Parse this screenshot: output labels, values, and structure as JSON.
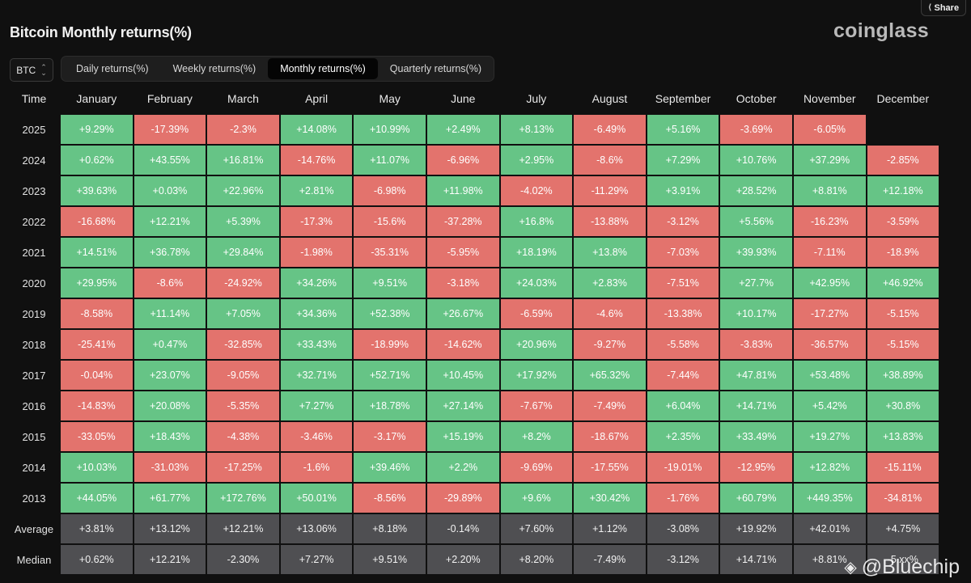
{
  "header": {
    "share_label": "Share",
    "title": "Bitcoin Monthly returns(%)",
    "brand": "coinglass"
  },
  "controls": {
    "coin": "BTC",
    "tabs": [
      "Daily returns(%)",
      "Weekly returns(%)",
      "Monthly returns(%)",
      "Quarterly returns(%)"
    ],
    "active_tab": 2
  },
  "table": {
    "columns": [
      "Time",
      "January",
      "February",
      "March",
      "April",
      "May",
      "June",
      "July",
      "August",
      "September",
      "October",
      "November",
      "December"
    ],
    "rows": [
      {
        "label": "2025",
        "values": [
          "+9.29%",
          "-17.39%",
          "-2.3%",
          "+14.08%",
          "+10.99%",
          "+2.49%",
          "+8.13%",
          "-6.49%",
          "+5.16%",
          "-3.69%",
          "-6.05%",
          ""
        ]
      },
      {
        "label": "2024",
        "values": [
          "+0.62%",
          "+43.55%",
          "+16.81%",
          "-14.76%",
          "+11.07%",
          "-6.96%",
          "+2.95%",
          "-8.6%",
          "+7.29%",
          "+10.76%",
          "+37.29%",
          "-2.85%"
        ]
      },
      {
        "label": "2023",
        "values": [
          "+39.63%",
          "+0.03%",
          "+22.96%",
          "+2.81%",
          "-6.98%",
          "+11.98%",
          "-4.02%",
          "-11.29%",
          "+3.91%",
          "+28.52%",
          "+8.81%",
          "+12.18%"
        ]
      },
      {
        "label": "2022",
        "values": [
          "-16.68%",
          "+12.21%",
          "+5.39%",
          "-17.3%",
          "-15.6%",
          "-37.28%",
          "+16.8%",
          "-13.88%",
          "-3.12%",
          "+5.56%",
          "-16.23%",
          "-3.59%"
        ]
      },
      {
        "label": "2021",
        "values": [
          "+14.51%",
          "+36.78%",
          "+29.84%",
          "-1.98%",
          "-35.31%",
          "-5.95%",
          "+18.19%",
          "+13.8%",
          "-7.03%",
          "+39.93%",
          "-7.11%",
          "-18.9%"
        ]
      },
      {
        "label": "2020",
        "values": [
          "+29.95%",
          "-8.6%",
          "-24.92%",
          "+34.26%",
          "+9.51%",
          "-3.18%",
          "+24.03%",
          "+2.83%",
          "-7.51%",
          "+27.7%",
          "+42.95%",
          "+46.92%"
        ]
      },
      {
        "label": "2019",
        "values": [
          "-8.58%",
          "+11.14%",
          "+7.05%",
          "+34.36%",
          "+52.38%",
          "+26.67%",
          "-6.59%",
          "-4.6%",
          "-13.38%",
          "+10.17%",
          "-17.27%",
          "-5.15%"
        ]
      },
      {
        "label": "2018",
        "values": [
          "-25.41%",
          "+0.47%",
          "-32.85%",
          "+33.43%",
          "-18.99%",
          "-14.62%",
          "+20.96%",
          "-9.27%",
          "-5.58%",
          "-3.83%",
          "-36.57%",
          "-5.15%"
        ]
      },
      {
        "label": "2017",
        "values": [
          "-0.04%",
          "+23.07%",
          "-9.05%",
          "+32.71%",
          "+52.71%",
          "+10.45%",
          "+17.92%",
          "+65.32%",
          "-7.44%",
          "+47.81%",
          "+53.48%",
          "+38.89%"
        ]
      },
      {
        "label": "2016",
        "values": [
          "-14.83%",
          "+20.08%",
          "-5.35%",
          "+7.27%",
          "+18.78%",
          "+27.14%",
          "-7.67%",
          "-7.49%",
          "+6.04%",
          "+14.71%",
          "+5.42%",
          "+30.8%"
        ]
      },
      {
        "label": "2015",
        "values": [
          "-33.05%",
          "+18.43%",
          "-4.38%",
          "-3.46%",
          "-3.17%",
          "+15.19%",
          "+8.2%",
          "-18.67%",
          "+2.35%",
          "+33.49%",
          "+19.27%",
          "+13.83%"
        ]
      },
      {
        "label": "2014",
        "values": [
          "+10.03%",
          "-31.03%",
          "-17.25%",
          "-1.6%",
          "+39.46%",
          "+2.2%",
          "-9.69%",
          "-17.55%",
          "-19.01%",
          "-12.95%",
          "+12.82%",
          "-15.11%"
        ]
      },
      {
        "label": "2013",
        "values": [
          "+44.05%",
          "+61.77%",
          "+172.76%",
          "+50.01%",
          "-8.56%",
          "-29.89%",
          "+9.6%",
          "+30.42%",
          "-1.76%",
          "+60.79%",
          "+449.35%",
          "-34.81%"
        ]
      }
    ],
    "stats": [
      {
        "label": "Average",
        "values": [
          "+3.81%",
          "+13.12%",
          "+12.21%",
          "+13.06%",
          "+8.18%",
          "-0.14%",
          "+7.60%",
          "+1.12%",
          "-3.08%",
          "+19.92%",
          "+42.01%",
          "+4.75%"
        ]
      },
      {
        "label": "Median",
        "values": [
          "+0.62%",
          "+12.21%",
          "-2.30%",
          "+7.27%",
          "+9.51%",
          "+2.20%",
          "+8.20%",
          "-7.49%",
          "-3.12%",
          "+14.71%",
          "+8.81%",
          "-5.xx%"
        ]
      }
    ]
  },
  "colors": {
    "positive": "#66c486",
    "negative": "#e3736d",
    "stat": "#4f4f52",
    "background": "#101010"
  },
  "watermark": "@Bluechip"
}
